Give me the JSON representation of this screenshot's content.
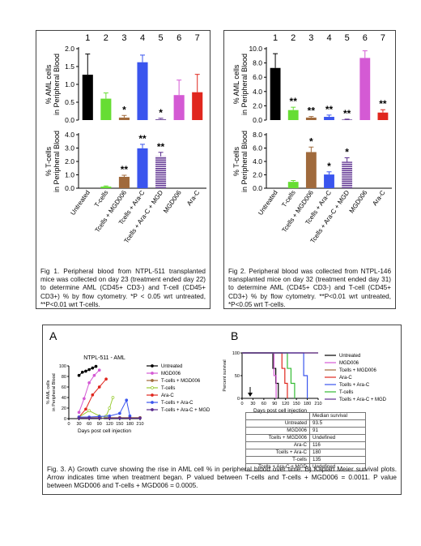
{
  "fig1": {
    "groups": [
      "1",
      "2",
      "3",
      "4",
      "5",
      "6",
      "7"
    ],
    "conditions": [
      "Untreated",
      "T-cells",
      "Tcells + MGD006",
      "Tcells + Ara-C",
      "Tcells + Ara-C + MGD",
      "MGD006",
      "Ara-C"
    ],
    "caption": "Fig 1. Peripheral blood from NTPL-511 transplanted mice was collected on day 23 (treatment ended day 22) to determine AML (CD45+ CD3-) and T-cell (CD45+ CD3+) % by flow cytometry. *P < 0.05 wrt untreated, **P<0.01 wrt T-cells."
  },
  "fig2": {
    "groups": [
      "1",
      "2",
      "3",
      "4",
      "5",
      "6",
      "7"
    ],
    "conditions": [
      "Untreated",
      "T-cells",
      "Tcells + MGD006",
      "Tcells + Ara-C",
      "Tcells + Ara-C + MGD",
      "MGD006",
      "Ara-C"
    ],
    "caption": "Fig 2. Peripheral blood was collected from NTPL-146 transplanted mice on day 32 (treatment ended day 31) to determine AML (CD45+ CD3-) and T-cell (CD45+ CD3+) % by flow cytometry. **P<0.01 wrt untreated, *P<0.05 wrt T-cells."
  },
  "fig3": {
    "label_a": "A",
    "label_b": "B",
    "caption": "Fig. 3. A) Growth curve showing the rise in AML cell % in peripheral blood over time. B) Kaplan Meier survival plots. Arrow indicates time when treatment began. P valued between T-cells and T-cells + MGD006 = 0.0011. P value between MGD006 and T-cells + MGD006 = 0.0005.",
    "table": {
      "header": "Median survival",
      "rows": [
        [
          "Untreated",
          "93.5"
        ],
        [
          "MGD006",
          "91"
        ],
        [
          "Tcells + MGD006",
          "Undefined"
        ],
        [
          "Ara-C",
          "116"
        ],
        [
          "Tcells + Ara-C",
          "180"
        ],
        [
          "T-cells",
          "135"
        ],
        [
          "Tcells + Ara-C + MGD",
          "Undefined"
        ]
      ]
    }
  },
  "colors": [
    "#000000",
    "#66dd33",
    "#a06a3c",
    "#3a55ee",
    "#5b2d8e",
    "#d45ad4",
    "#e0271e"
  ],
  "chart_data": [
    {
      "type": "bar",
      "title": "",
      "ylabel": "% AML cells in Peripheral Blood",
      "ylim": [
        0,
        2.0
      ],
      "yticks": [
        "0.0",
        "0.5",
        "1.0",
        "1.5",
        "2.0"
      ],
      "categories": [
        "1",
        "2",
        "3",
        "4",
        "5",
        "6",
        "7"
      ],
      "values": [
        1.27,
        0.6,
        0.07,
        1.62,
        0.03,
        0.7,
        0.78
      ],
      "errors": [
        0.58,
        0.16,
        0.06,
        0.2,
        0.02,
        0.42,
        0.5
      ],
      "annotations": [
        "",
        "",
        "*",
        "",
        "*",
        "",
        ""
      ]
    },
    {
      "type": "bar",
      "title": "",
      "ylabel": "% T-cells in Peripheral Blood",
      "ylim": [
        0,
        4.0
      ],
      "yticks": [
        "0.0",
        "1.0",
        "2.0",
        "3.0",
        "4.0"
      ],
      "categories": [
        "Untreated",
        "T-cells",
        "Tcells + MGD006",
        "Tcells + Ara-C",
        "Tcells + Ara-C + MGD",
        "MGD006",
        "Ara-C"
      ],
      "values": [
        0,
        0.12,
        0.85,
        2.98,
        2.38,
        0,
        0
      ],
      "errors": [
        0,
        0.05,
        0.12,
        0.3,
        0.3,
        0,
        0
      ],
      "annotations": [
        "",
        "",
        "**",
        "**",
        "**",
        "",
        ""
      ]
    },
    {
      "type": "bar",
      "title": "",
      "ylabel": "% AML cells in Peripheral Blood",
      "ylim": [
        0,
        10.0
      ],
      "yticks": [
        "0.0",
        "2.0",
        "4.0",
        "6.0",
        "8.0",
        "10.0"
      ],
      "categories": [
        "1",
        "2",
        "3",
        "4",
        "5",
        "6",
        "7"
      ],
      "values": [
        7.3,
        1.4,
        0.35,
        0.45,
        0.08,
        8.7,
        1.05
      ],
      "errors": [
        2.0,
        0.4,
        0.15,
        0.25,
        0.05,
        1.0,
        0.4
      ],
      "annotations": [
        "",
        "**",
        "**",
        "**",
        "**",
        "",
        "**"
      ]
    },
    {
      "type": "bar",
      "title": "",
      "ylabel": "% T-cells in Peripheral Blood",
      "ylim": [
        0,
        8.0
      ],
      "yticks": [
        "0.0",
        "2.0",
        "4.0",
        "6.0",
        "8.0"
      ],
      "categories": [
        "Untreated",
        "T-cells",
        "Tcells + MGD006",
        "Tcells + Ara-C",
        "Tcells + Ara-C + MGD",
        "MGD006",
        "Ara-C"
      ],
      "values": [
        0,
        0.95,
        5.4,
        2.05,
        3.95,
        0,
        0
      ],
      "errors": [
        0,
        0.2,
        0.75,
        0.4,
        0.6,
        0,
        0
      ],
      "annotations": [
        "",
        "",
        "*",
        "*",
        "*",
        "",
        ""
      ]
    },
    {
      "type": "line",
      "title": "NTPL-511 - AML",
      "xlabel": "Days post cell injection",
      "ylabel": "% AML cells in Peripheral Blood",
      "xlim": [
        0,
        210
      ],
      "ylim": [
        0,
        100
      ],
      "xticks": [
        0,
        30,
        60,
        90,
        120,
        150,
        180,
        210
      ],
      "yticks": [
        0,
        20,
        40,
        60,
        80,
        100
      ],
      "series": [
        {
          "name": "Untreated",
          "color": "#000000",
          "x": [
            30,
            40,
            50,
            60,
            70,
            80
          ],
          "y": [
            82,
            88,
            90,
            93,
            96,
            99
          ]
        },
        {
          "name": "MGD006",
          "color": "#d45ad4",
          "x": [
            30,
            45,
            60,
            75,
            90
          ],
          "y": [
            12,
            38,
            68,
            82,
            92
          ]
        },
        {
          "name": "T-cells + MGD006",
          "color": "#a06a3c",
          "x": [
            30,
            60,
            90,
            120,
            150,
            180,
            210
          ],
          "y": [
            2,
            2,
            2,
            2,
            2,
            2,
            2
          ]
        },
        {
          "name": "T-cells",
          "color": "#99cc33",
          "x": [
            30,
            60,
            90,
            100,
            110,
            120,
            130
          ],
          "y": [
            3,
            15,
            5,
            2,
            5,
            20,
            40
          ]
        },
        {
          "name": "Ara-C",
          "color": "#e0271e",
          "x": [
            30,
            50,
            70,
            90,
            110
          ],
          "y": [
            3,
            18,
            45,
            60,
            75
          ]
        },
        {
          "name": "T-cells + Ara-C",
          "color": "#3a55ee",
          "x": [
            30,
            60,
            90,
            120,
            150,
            170,
            180
          ],
          "y": [
            3,
            3,
            4,
            5,
            10,
            35,
            5
          ]
        },
        {
          "name": "T-cells + Ara-C + MGD",
          "color": "#5b2d8e",
          "x": [
            30,
            60,
            90,
            120,
            150,
            180,
            210
          ],
          "y": [
            1,
            1,
            1,
            1,
            1,
            1,
            1
          ]
        }
      ]
    },
    {
      "type": "line",
      "title": "",
      "xlabel": "Days post cell injection",
      "ylabel": "Percent survival",
      "xlim": [
        0,
        210
      ],
      "ylim": [
        0,
        100
      ],
      "xticks": [
        0,
        30,
        60,
        90,
        120,
        150,
        180,
        210
      ],
      "yticks": [
        0,
        50,
        100
      ],
      "series": [
        {
          "name": "Untreated",
          "color": "#000000",
          "x": [
            0,
            85,
            85,
            93,
            93,
            100,
            100
          ],
          "y": [
            100,
            100,
            66,
            66,
            33,
            33,
            0
          ]
        },
        {
          "name": "MGD006",
          "color": "#d45ad4",
          "x": [
            0,
            88,
            88,
            94,
            94
          ],
          "y": [
            100,
            100,
            50,
            50,
            0
          ]
        },
        {
          "name": "Tcells + MGD006",
          "color": "#a06a3c",
          "x": [
            0,
            210
          ],
          "y": [
            100,
            100
          ]
        },
        {
          "name": "Ara-C",
          "color": "#e0271e",
          "x": [
            0,
            110,
            110,
            118,
            118,
            125,
            125
          ],
          "y": [
            100,
            100,
            66,
            66,
            33,
            33,
            0
          ]
        },
        {
          "name": "Tcells + Ara-C",
          "color": "#3a55ee",
          "x": [
            0,
            170,
            170,
            180,
            180
          ],
          "y": [
            100,
            100,
            50,
            50,
            0
          ]
        },
        {
          "name": "T-cells",
          "color": "#33bb33",
          "x": [
            0,
            125,
            125,
            135,
            135,
            145,
            145
          ],
          "y": [
            100,
            100,
            66,
            66,
            33,
            33,
            0
          ]
        },
        {
          "name": "Tcells + Ara-C + MGD",
          "color": "#5b2d8e",
          "x": [
            0,
            210
          ],
          "y": [
            100,
            100
          ]
        }
      ]
    }
  ]
}
